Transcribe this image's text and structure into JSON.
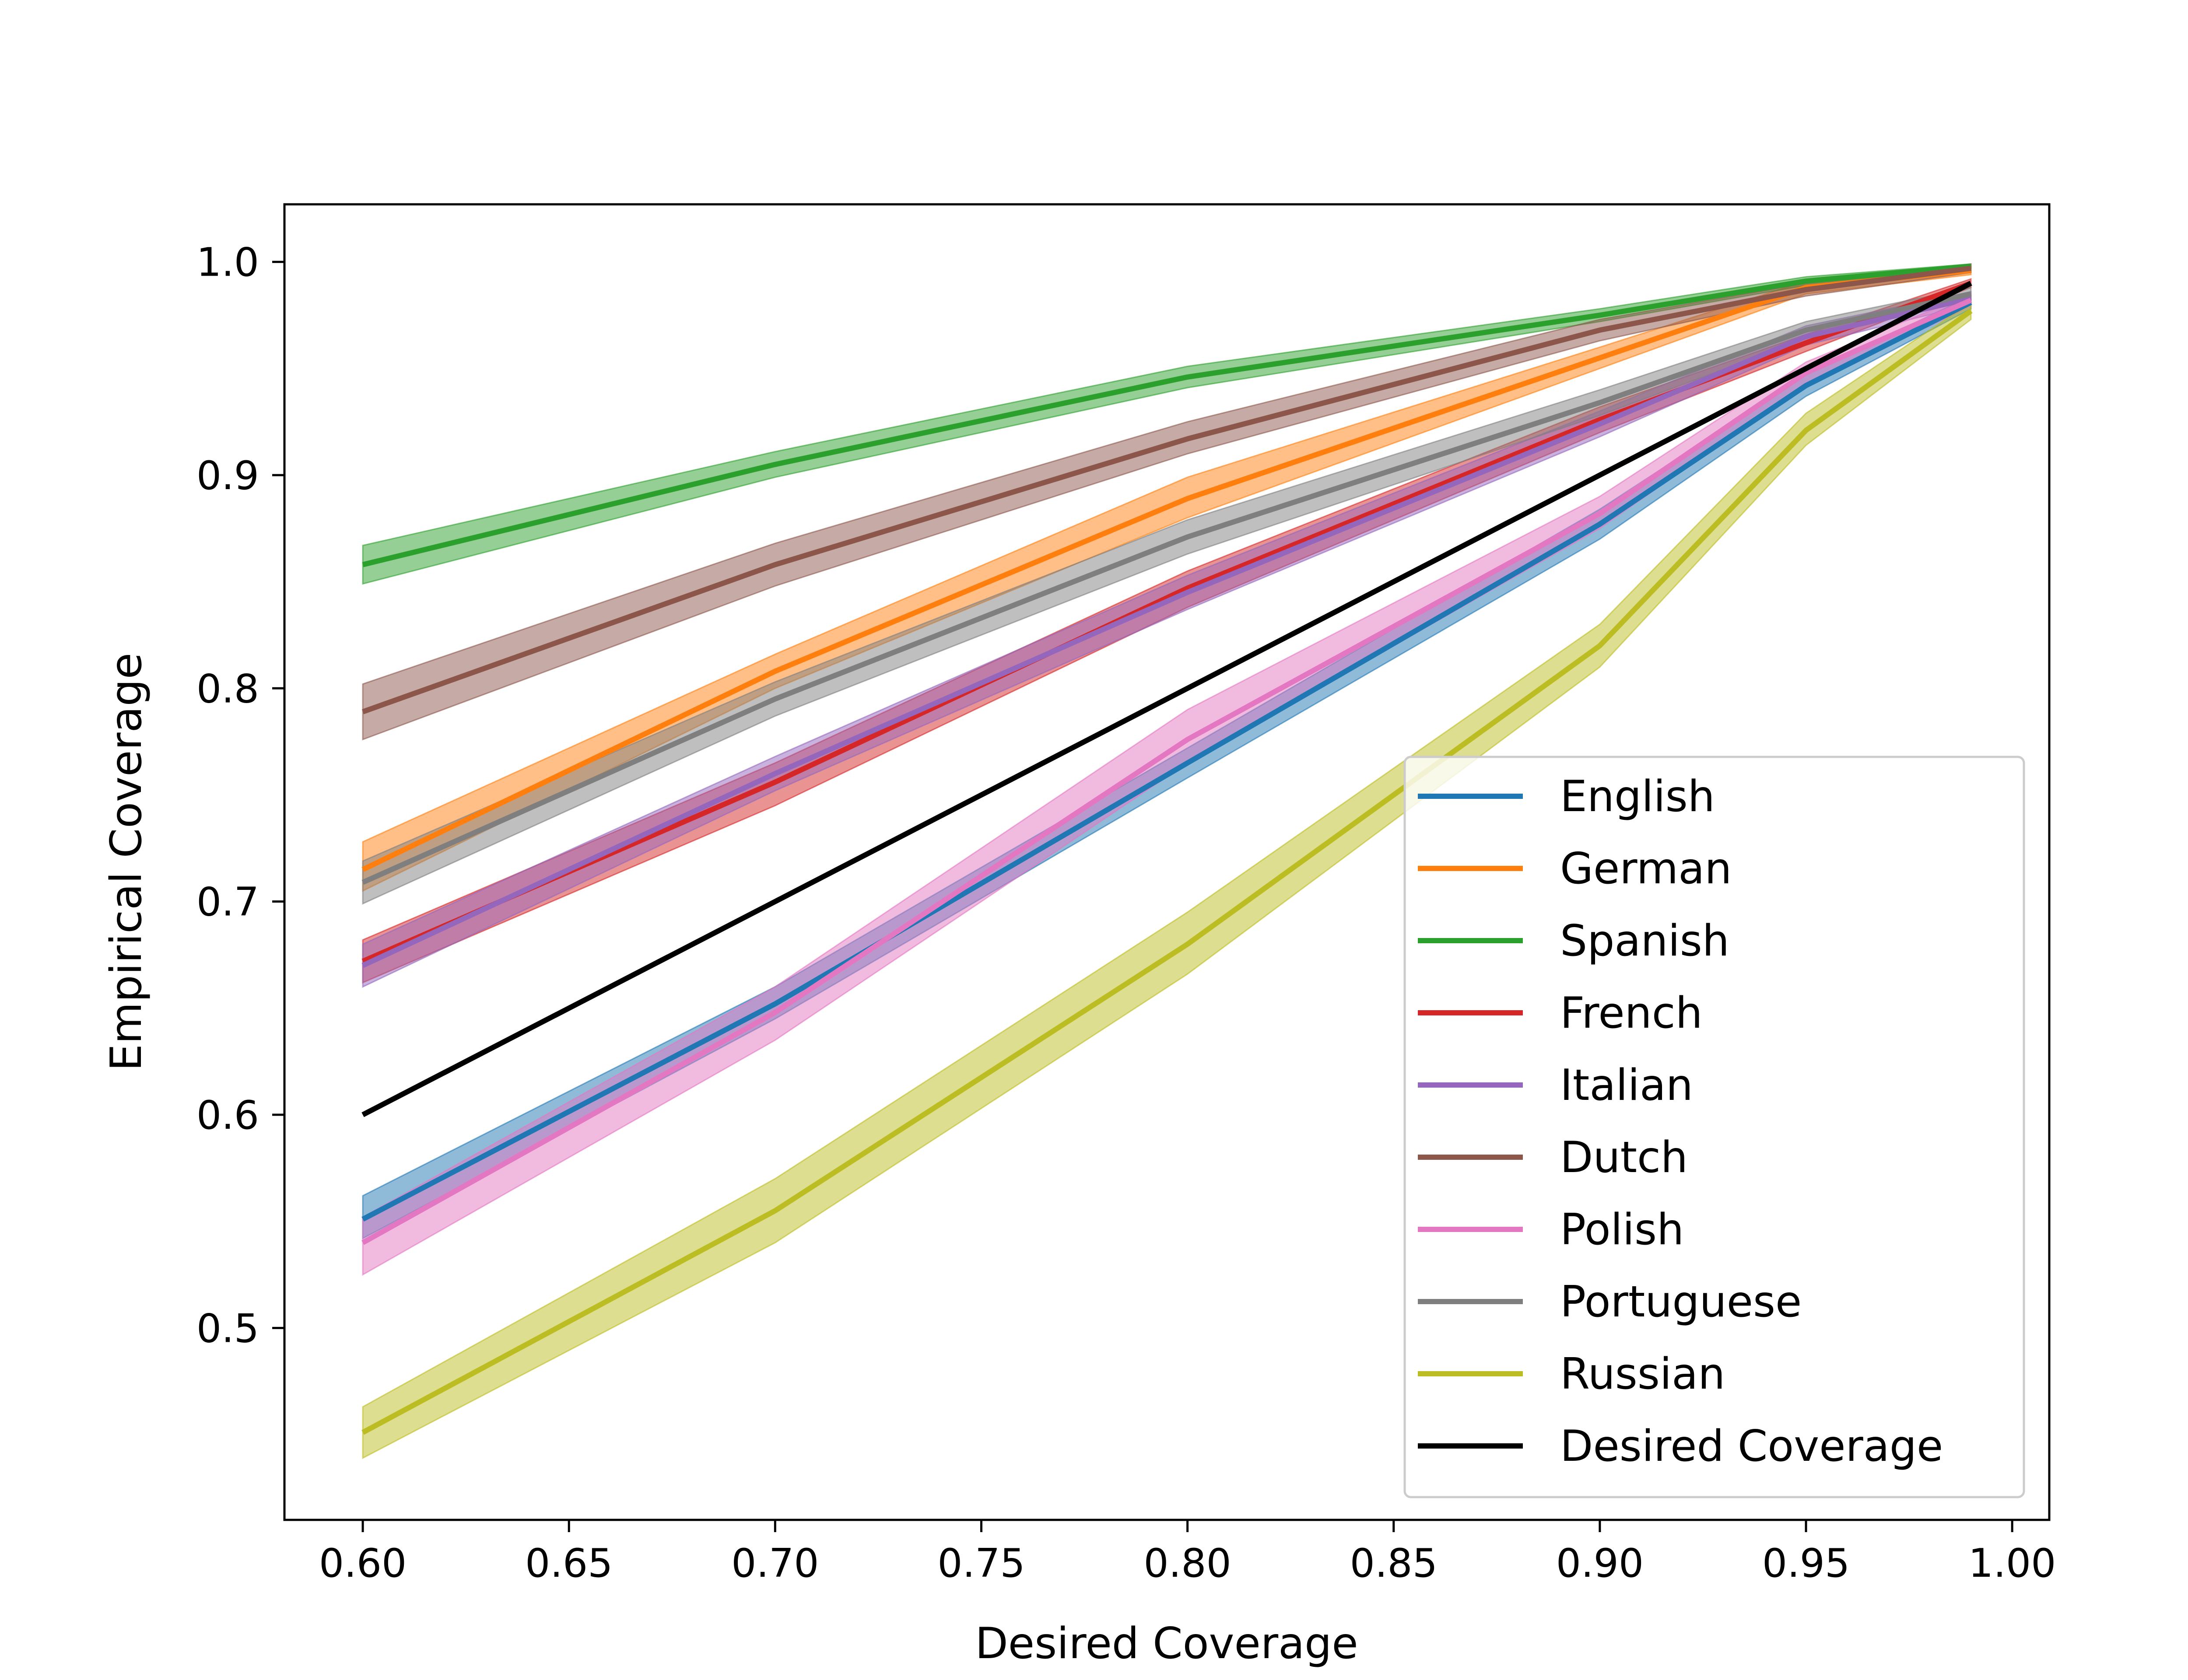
{
  "chart_data": {
    "type": "line",
    "title": "",
    "xlabel": "Desired Coverage",
    "ylabel": "Empirical Coverage",
    "xlim": [
      0.581,
      1.009
    ],
    "ylim": [
      0.41,
      1.027
    ],
    "xticks": [
      0.6,
      0.65,
      0.7,
      0.75,
      0.8,
      0.85,
      0.9,
      0.95,
      1.0
    ],
    "xtick_labels": [
      "0.60",
      "0.65",
      "0.70",
      "0.75",
      "0.80",
      "0.85",
      "0.90",
      "0.95",
      "1.00"
    ],
    "yticks": [
      0.5,
      0.6,
      0.7,
      0.8,
      0.9,
      1.0
    ],
    "ytick_labels": [
      "0.5",
      "0.6",
      "0.7",
      "0.8",
      "0.9",
      "1.0"
    ],
    "grid": false,
    "legend_position": "lower-right",
    "x": [
      0.6,
      0.7,
      0.8,
      0.9,
      0.95,
      0.99
    ],
    "series": [
      {
        "name": "English",
        "color": "#1f77b4",
        "values": [
          0.551,
          0.652,
          0.765,
          0.877,
          0.942,
          0.981
        ],
        "lower": [
          0.542,
          0.645,
          0.758,
          0.87,
          0.937,
          0.978
        ],
        "upper": [
          0.562,
          0.66,
          0.772,
          0.884,
          0.947,
          0.984
        ]
      },
      {
        "name": "German",
        "color": "#ff7f0e",
        "values": [
          0.715,
          0.808,
          0.889,
          0.955,
          0.988,
          0.996
        ],
        "lower": [
          0.705,
          0.8,
          0.88,
          0.95,
          0.985,
          0.994
        ],
        "upper": [
          0.728,
          0.816,
          0.899,
          0.96,
          0.991,
          0.998
        ]
      },
      {
        "name": "Spanish",
        "color": "#2ca02c",
        "values": [
          0.858,
          0.905,
          0.946,
          0.975,
          0.991,
          0.998
        ],
        "lower": [
          0.849,
          0.899,
          0.941,
          0.972,
          0.989,
          0.997
        ],
        "upper": [
          0.867,
          0.911,
          0.951,
          0.978,
          0.993,
          0.999
        ]
      },
      {
        "name": "French",
        "color": "#d62728",
        "values": [
          0.672,
          0.756,
          0.847,
          0.926,
          0.962,
          0.99
        ],
        "lower": [
          0.662,
          0.745,
          0.838,
          0.92,
          0.958,
          0.988
        ],
        "upper": [
          0.682,
          0.765,
          0.855,
          0.932,
          0.966,
          0.992
        ]
      },
      {
        "name": "Italian",
        "color": "#9467bd",
        "values": [
          0.67,
          0.76,
          0.845,
          0.924,
          0.965,
          0.983
        ],
        "lower": [
          0.66,
          0.752,
          0.837,
          0.918,
          0.961,
          0.98
        ],
        "upper": [
          0.68,
          0.768,
          0.853,
          0.93,
          0.97,
          0.986
        ]
      },
      {
        "name": "Dutch",
        "color": "#8c564b",
        "values": [
          0.789,
          0.858,
          0.917,
          0.968,
          0.987,
          0.997
        ],
        "lower": [
          0.776,
          0.848,
          0.91,
          0.963,
          0.984,
          0.995
        ],
        "upper": [
          0.802,
          0.868,
          0.925,
          0.973,
          0.99,
          0.999
        ]
      },
      {
        "name": "Polish",
        "color": "#e377c2",
        "values": [
          0.54,
          0.648,
          0.776,
          0.882,
          0.948,
          0.982
        ],
        "lower": [
          0.525,
          0.635,
          0.765,
          0.875,
          0.943,
          0.979
        ],
        "upper": [
          0.552,
          0.66,
          0.79,
          0.89,
          0.953,
          0.985
        ]
      },
      {
        "name": "Portuguese",
        "color": "#7f7f7f",
        "values": [
          0.709,
          0.795,
          0.871,
          0.934,
          0.968,
          0.985
        ],
        "lower": [
          0.699,
          0.787,
          0.863,
          0.928,
          0.964,
          0.982
        ],
        "upper": [
          0.719,
          0.803,
          0.879,
          0.94,
          0.972,
          0.988
        ]
      },
      {
        "name": "Russian",
        "color": "#bcbd22",
        "values": [
          0.451,
          0.555,
          0.68,
          0.82,
          0.921,
          0.977
        ],
        "lower": [
          0.439,
          0.54,
          0.666,
          0.81,
          0.914,
          0.973
        ],
        "upper": [
          0.463,
          0.57,
          0.695,
          0.83,
          0.929,
          0.981
        ]
      },
      {
        "name": "Desired Coverage",
        "color": "#000000",
        "values": [
          0.6,
          0.7,
          0.8,
          0.9,
          0.95,
          0.99
        ]
      }
    ]
  }
}
